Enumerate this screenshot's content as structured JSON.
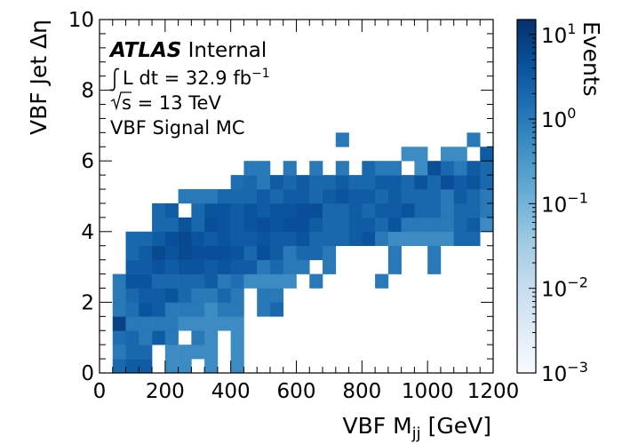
{
  "chart_data": {
    "type": "heatmap",
    "xlabel_main": "VBF M",
    "xlabel_sub": "jj",
    "xlabel_unit": " [GeV]",
    "ylabel": "VBF Jet Δη",
    "zlabel": "Events",
    "xlim": [
      0,
      1200
    ],
    "ylim": [
      0,
      10
    ],
    "x_bin_width": 40,
    "y_bin_width": 0.4,
    "x_ticks": [
      "0",
      "200",
      "400",
      "600",
      "800",
      "1000",
      "1200"
    ],
    "y_ticks": [
      "0",
      "2",
      "4",
      "6",
      "8",
      "10"
    ],
    "z_scale": "log",
    "zlim": [
      0.001,
      15
    ],
    "z_ticks": [
      {
        "base": "10",
        "exp": "1"
      },
      {
        "base": "10",
        "exp": "0"
      },
      {
        "base": "10",
        "exp": "−1"
      },
      {
        "base": "10",
        "exp": "−2"
      },
      {
        "base": "10",
        "exp": "−3"
      }
    ],
    "colormap": [
      "#f7fbff",
      "#deebf7",
      "#c6dbef",
      "#9ecae1",
      "#6baed6",
      "#4292c6",
      "#2171b5",
      "#08519c",
      "#08306b"
    ],
    "cells": [
      [
        40,
        0,
        2
      ],
      [
        80,
        0,
        3
      ],
      [
        120,
        0,
        3
      ],
      [
        200,
        0,
        0.5
      ],
      [
        240,
        0,
        0.5
      ],
      [
        320,
        0,
        0.5
      ],
      [
        400,
        0,
        0.5
      ],
      [
        40,
        0.4,
        1
      ],
      [
        80,
        0.4,
        2
      ],
      [
        120,
        0.4,
        2
      ],
      [
        200,
        0.4,
        0.5
      ],
      [
        240,
        0.4,
        0.5
      ],
      [
        280,
        0.4,
        0.5
      ],
      [
        320,
        0.4,
        0.5
      ],
      [
        400,
        0.4,
        0.5
      ],
      [
        40,
        0.8,
        1.5
      ],
      [
        80,
        0.8,
        2
      ],
      [
        120,
        0.8,
        1
      ],
      [
        160,
        0.8,
        3
      ],
      [
        200,
        0.8,
        1
      ],
      [
        280,
        0.8,
        1
      ],
      [
        320,
        0.8,
        0.5
      ],
      [
        400,
        0.8,
        0.5
      ],
      [
        40,
        1.2,
        8
      ],
      [
        80,
        1.2,
        1
      ],
      [
        120,
        1.2,
        1
      ],
      [
        160,
        1.2,
        1
      ],
      [
        200,
        1.2,
        1
      ],
      [
        240,
        1.2,
        0.5
      ],
      [
        280,
        1.2,
        0.5
      ],
      [
        320,
        1.2,
        0.5
      ],
      [
        360,
        1.2,
        0.5
      ],
      [
        400,
        1.2,
        0.5
      ],
      [
        40,
        1.6,
        1
      ],
      [
        80,
        1.6,
        1.5
      ],
      [
        120,
        1.6,
        4
      ],
      [
        160,
        1.6,
        3
      ],
      [
        200,
        1.6,
        1
      ],
      [
        240,
        1.6,
        1
      ],
      [
        280,
        1.6,
        1
      ],
      [
        320,
        1.6,
        0.5
      ],
      [
        360,
        1.6,
        1
      ],
      [
        400,
        1.6,
        1
      ],
      [
        480,
        1.6,
        1
      ],
      [
        520,
        1.6,
        2
      ],
      [
        40,
        2.0,
        1
      ],
      [
        80,
        2.0,
        2
      ],
      [
        120,
        2.0,
        3
      ],
      [
        160,
        2.0,
        3
      ],
      [
        200,
        2.0,
        4
      ],
      [
        240,
        2.0,
        2
      ],
      [
        280,
        2.0,
        1
      ],
      [
        320,
        2.0,
        1
      ],
      [
        360,
        2.0,
        2
      ],
      [
        400,
        2.0,
        1
      ],
      [
        480,
        2.0,
        1
      ],
      [
        520,
        2.0,
        1
      ],
      [
        40,
        2.4,
        1
      ],
      [
        80,
        2.4,
        4
      ],
      [
        120,
        2.4,
        4
      ],
      [
        160,
        2.4,
        2
      ],
      [
        200,
        2.4,
        2
      ],
      [
        240,
        2.4,
        2
      ],
      [
        280,
        2.4,
        2
      ],
      [
        320,
        2.4,
        3
      ],
      [
        360,
        2.4,
        1
      ],
      [
        400,
        2.4,
        1.5
      ],
      [
        440,
        2.4,
        0.5
      ],
      [
        480,
        2.4,
        0.5
      ],
      [
        520,
        2.4,
        0.5
      ],
      [
        560,
        2.4,
        0.5
      ],
      [
        640,
        2.4,
        1
      ],
      [
        840,
        2.4,
        1
      ],
      [
        80,
        2.8,
        3
      ],
      [
        120,
        2.8,
        3
      ],
      [
        160,
        2.8,
        4
      ],
      [
        200,
        2.8,
        3
      ],
      [
        240,
        2.8,
        4
      ],
      [
        280,
        2.8,
        4
      ],
      [
        320,
        2.8,
        3
      ],
      [
        360,
        2.8,
        4
      ],
      [
        400,
        2.8,
        3
      ],
      [
        440,
        2.8,
        3
      ],
      [
        480,
        2.8,
        1
      ],
      [
        520,
        2.8,
        2
      ],
      [
        560,
        2.8,
        1
      ],
      [
        600,
        2.8,
        1
      ],
      [
        680,
        2.8,
        1
      ],
      [
        880,
        2.8,
        1
      ],
      [
        1000,
        2.8,
        1
      ],
      [
        80,
        3.2,
        2
      ],
      [
        120,
        3.2,
        3
      ],
      [
        160,
        3.2,
        6
      ],
      [
        200,
        3.2,
        4
      ],
      [
        240,
        3.2,
        6
      ],
      [
        280,
        3.2,
        5
      ],
      [
        320,
        3.2,
        5
      ],
      [
        360,
        3.2,
        5
      ],
      [
        400,
        3.2,
        4
      ],
      [
        440,
        3.2,
        2
      ],
      [
        480,
        3.2,
        5
      ],
      [
        520,
        3.2,
        3
      ],
      [
        560,
        3.2,
        1
      ],
      [
        600,
        3.2,
        2
      ],
      [
        640,
        3.2,
        2
      ],
      [
        680,
        3.2,
        1
      ],
      [
        880,
        3.2,
        1
      ],
      [
        1000,
        3.2,
        1
      ],
      [
        80,
        3.6,
        2
      ],
      [
        120,
        3.6,
        2
      ],
      [
        160,
        3.6,
        3
      ],
      [
        200,
        3.6,
        5
      ],
      [
        240,
        3.6,
        6
      ],
      [
        280,
        3.6,
        4
      ],
      [
        320,
        3.6,
        3
      ],
      [
        360,
        3.6,
        4
      ],
      [
        400,
        3.6,
        3
      ],
      [
        440,
        3.6,
        3
      ],
      [
        480,
        3.6,
        4
      ],
      [
        520,
        3.6,
        3
      ],
      [
        560,
        3.6,
        3
      ],
      [
        600,
        3.6,
        4
      ],
      [
        640,
        3.6,
        2
      ],
      [
        680,
        3.6,
        2
      ],
      [
        720,
        3.6,
        2
      ],
      [
        760,
        3.6,
        3
      ],
      [
        800,
        3.6,
        4
      ],
      [
        840,
        3.6,
        1
      ],
      [
        880,
        3.6,
        0.5
      ],
      [
        920,
        3.6,
        0.5
      ],
      [
        960,
        3.6,
        0.5
      ],
      [
        1000,
        3.6,
        0.5
      ],
      [
        1040,
        3.6,
        0.5
      ],
      [
        1080,
        3.6,
        2
      ],
      [
        1120,
        3.6,
        2
      ],
      [
        160,
        4.0,
        2
      ],
      [
        200,
        4.0,
        2
      ],
      [
        240,
        4.0,
        4
      ],
      [
        280,
        4.0,
        2
      ],
      [
        320,
        4.0,
        5
      ],
      [
        360,
        4.0,
        4
      ],
      [
        400,
        4.0,
        3
      ],
      [
        440,
        4.0,
        4
      ],
      [
        480,
        4.0,
        5
      ],
      [
        520,
        4.0,
        4
      ],
      [
        560,
        4.0,
        5
      ],
      [
        600,
        4.0,
        5
      ],
      [
        640,
        4.0,
        3
      ],
      [
        680,
        4.0,
        2
      ],
      [
        720,
        4.0,
        2
      ],
      [
        760,
        4.0,
        3
      ],
      [
        800,
        4.0,
        3
      ],
      [
        840,
        4.0,
        2
      ],
      [
        880,
        4.0,
        4
      ],
      [
        920,
        4.0,
        1
      ],
      [
        960,
        4.0,
        1
      ],
      [
        1000,
        4.0,
        1
      ],
      [
        1040,
        4.0,
        1
      ],
      [
        1080,
        4.0,
        2
      ],
      [
        1120,
        4.0,
        3
      ],
      [
        1160,
        4.0,
        0.5
      ],
      [
        160,
        4.4,
        2
      ],
      [
        200,
        4.4,
        3
      ],
      [
        280,
        4.4,
        2
      ],
      [
        320,
        4.4,
        4
      ],
      [
        360,
        4.4,
        4
      ],
      [
        400,
        4.4,
        3
      ],
      [
        440,
        4.4,
        4
      ],
      [
        480,
        4.4,
        3
      ],
      [
        520,
        4.4,
        4
      ],
      [
        560,
        4.4,
        4
      ],
      [
        600,
        4.4,
        5
      ],
      [
        640,
        4.4,
        5
      ],
      [
        680,
        4.4,
        2
      ],
      [
        720,
        4.4,
        2
      ],
      [
        760,
        4.4,
        3
      ],
      [
        800,
        4.4,
        2
      ],
      [
        840,
        4.4,
        3
      ],
      [
        880,
        4.4,
        3
      ],
      [
        920,
        4.4,
        4
      ],
      [
        960,
        4.4,
        2
      ],
      [
        1000,
        4.4,
        2
      ],
      [
        1040,
        4.4,
        1
      ],
      [
        1080,
        4.4,
        2
      ],
      [
        1120,
        4.4,
        2
      ],
      [
        1160,
        4.4,
        1
      ],
      [
        240,
        4.8,
        1
      ],
      [
        280,
        4.8,
        1
      ],
      [
        320,
        4.8,
        1
      ],
      [
        360,
        4.8,
        2
      ],
      [
        400,
        4.8,
        2
      ],
      [
        440,
        4.8,
        2
      ],
      [
        480,
        4.8,
        3
      ],
      [
        520,
        4.8,
        2
      ],
      [
        560,
        4.8,
        3
      ],
      [
        600,
        4.8,
        3
      ],
      [
        640,
        4.8,
        2
      ],
      [
        680,
        4.8,
        3
      ],
      [
        720,
        4.8,
        4
      ],
      [
        760,
        4.8,
        3
      ],
      [
        800,
        4.8,
        3
      ],
      [
        840,
        4.8,
        2
      ],
      [
        880,
        4.8,
        3
      ],
      [
        920,
        4.8,
        2
      ],
      [
        960,
        4.8,
        2
      ],
      [
        1000,
        4.8,
        2
      ],
      [
        1040,
        4.8,
        1
      ],
      [
        1080,
        4.8,
        3
      ],
      [
        1120,
        4.8,
        2
      ],
      [
        1160,
        4.8,
        1
      ],
      [
        400,
        5.2,
        1.5
      ],
      [
        440,
        5.2,
        2
      ],
      [
        480,
        5.2,
        1
      ],
      [
        520,
        5.2,
        3
      ],
      [
        560,
        5.2,
        2
      ],
      [
        600,
        5.2,
        3
      ],
      [
        640,
        5.2,
        2
      ],
      [
        680,
        5.2,
        2
      ],
      [
        720,
        5.2,
        3
      ],
      [
        760,
        5.2,
        2
      ],
      [
        800,
        5.2,
        2
      ],
      [
        840,
        5.2,
        3
      ],
      [
        880,
        5.2,
        3
      ],
      [
        920,
        5.2,
        2
      ],
      [
        960,
        5.2,
        4
      ],
      [
        1000,
        5.2,
        2
      ],
      [
        1040,
        5.2,
        5
      ],
      [
        1080,
        5.2,
        3
      ],
      [
        1120,
        5.2,
        4
      ],
      [
        1160,
        5.2,
        2
      ],
      [
        440,
        5.6,
        1
      ],
      [
        480,
        5.6,
        1
      ],
      [
        560,
        5.6,
        1
      ],
      [
        640,
        5.6,
        1
      ],
      [
        720,
        5.6,
        1
      ],
      [
        800,
        5.6,
        2
      ],
      [
        840,
        5.6,
        1
      ],
      [
        880,
        5.6,
        1
      ],
      [
        960,
        5.6,
        0.5
      ],
      [
        1000,
        5.6,
        5
      ],
      [
        1040,
        5.6,
        2
      ],
      [
        1080,
        5.6,
        1
      ],
      [
        1120,
        5.6,
        3
      ],
      [
        1160,
        5.6,
        2
      ],
      [
        920,
        6.0,
        0.5
      ],
      [
        960,
        6.0,
        0.5
      ],
      [
        1040,
        6.0,
        0.5
      ],
      [
        1080,
        6.0,
        0.5
      ],
      [
        1160,
        6.0,
        3
      ],
      [
        720,
        6.4,
        1
      ],
      [
        1120,
        6.4,
        1
      ]
    ],
    "annotations": {
      "atlas": "ATLAS",
      "internal": " Internal",
      "lumi_prefix": "L dt = 32.9 fb",
      "lumi_sup": "−1",
      "energy_prefix": "s",
      "energy_value": " = 13 TeV",
      "sample": "VBF Signal MC"
    }
  }
}
